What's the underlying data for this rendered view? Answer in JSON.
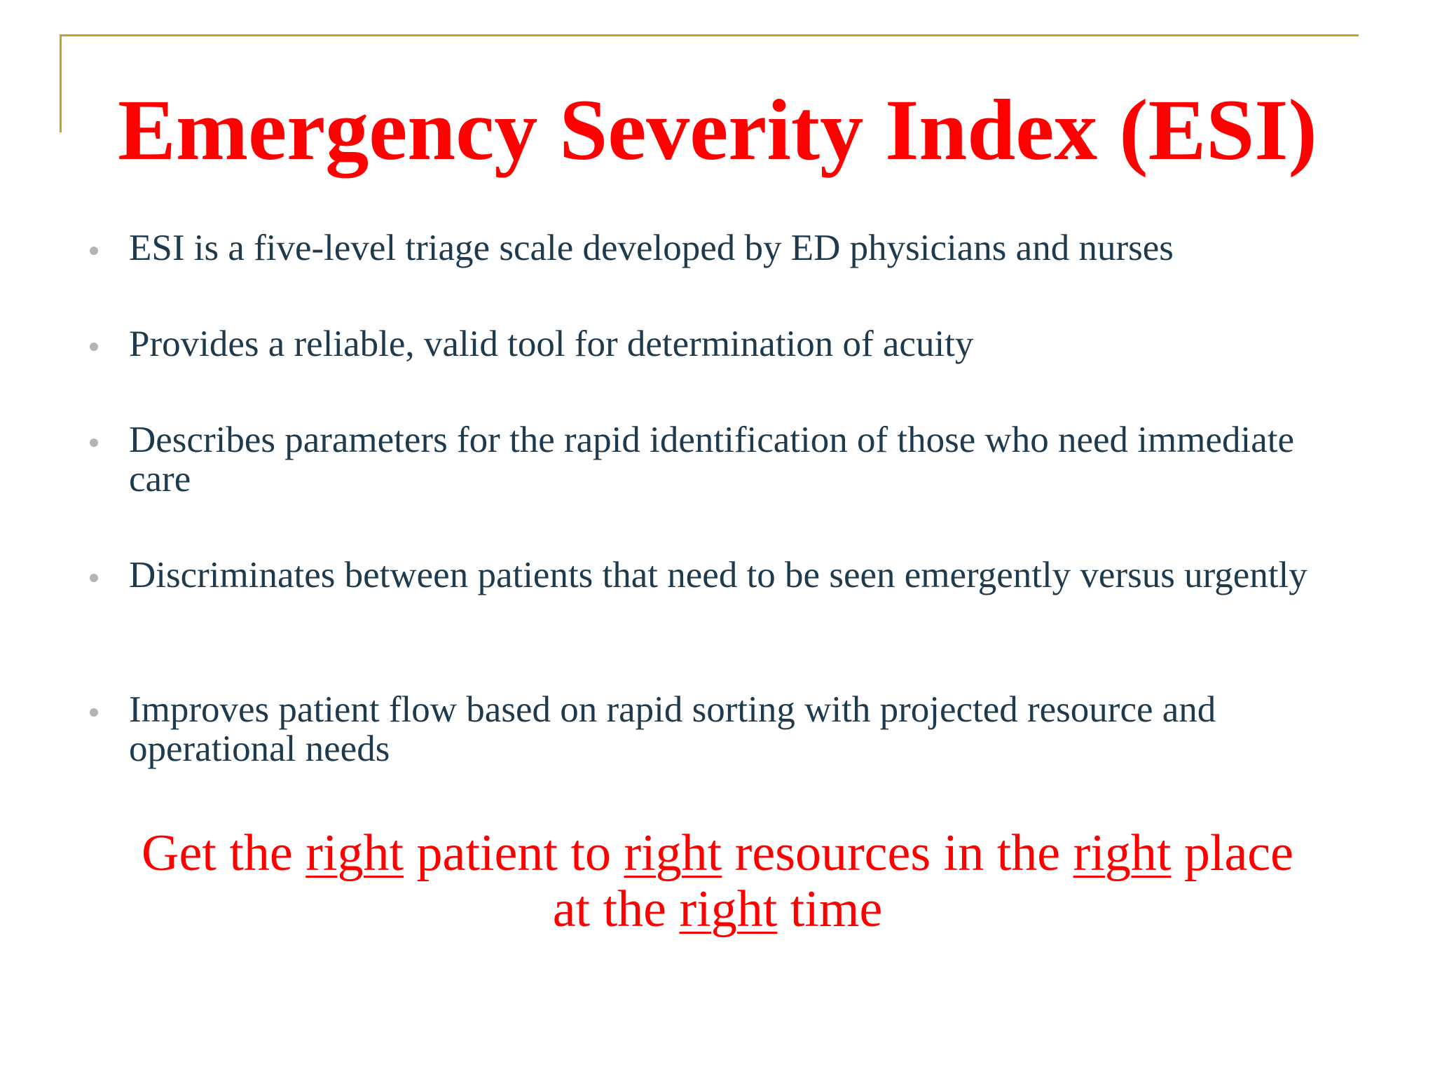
{
  "slide": {
    "title": "Emergency Severity Index (ESI)",
    "bullets": [
      "ESI is a five-level triage scale developed by ED physicians and nurses",
      "Provides a reliable, valid tool for determination of acuity",
      "Describes parameters for the rapid identification of those who need immediate care",
      "Discriminates between patients that need to be seen emergently versus urgently",
      "Improves patient flow based on rapid sorting with projected resource and operational needs"
    ],
    "tagline": {
      "line1": [
        {
          "text": "Get the ",
          "u": false
        },
        {
          "text": "right",
          "u": true
        },
        {
          "text": " patient to ",
          "u": false
        },
        {
          "text": "right",
          "u": true
        },
        {
          "text": " resources in the ",
          "u": false
        },
        {
          "text": "right",
          "u": true
        },
        {
          "text": " place",
          "u": false
        }
      ],
      "line2": [
        {
          "text": "at the ",
          "u": false
        },
        {
          "text": "right",
          "u": true
        },
        {
          "text": " time",
          "u": false
        }
      ]
    },
    "colors": {
      "title": "#ff0000",
      "body_text": "#1f3a4d",
      "accent_line": "#c9a227",
      "bullet_dot": "#b4b4b4",
      "tagline": "#ff0000"
    }
  }
}
